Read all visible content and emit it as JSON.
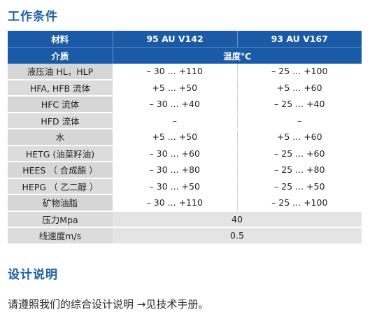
{
  "section1": {
    "title": "工作条件"
  },
  "table": {
    "header": {
      "material_label": "材料",
      "medium_label": "介质",
      "col1": "95 AU V142",
      "col2": "93 AU V167",
      "temperature_label": "温度℃"
    },
    "rows": [
      {
        "label": "液压油 HL，HLP",
        "v1": "– 30 ... +110",
        "v2": "– 25 ... +100"
      },
      {
        "label": "HFA, HFB 流体",
        "v1": "+5 ... +50",
        "v2": "+5 ... +60"
      },
      {
        "label": "HFC 流体",
        "v1": "– 30 ... +40",
        "v2": "– 25 ... +40"
      },
      {
        "label": "HFD 流体",
        "v1": "–",
        "v2": "–"
      },
      {
        "label": "水",
        "v1": "+5 ... +50",
        "v2": "+5 ... +60"
      },
      {
        "label": "HETG (油菜籽油)",
        "v1": "– 30 ... +60",
        "v2": "– 25 ... +60"
      },
      {
        "label": "HEES （ 合成酯 ）",
        "v1": "– 30 ... +80",
        "v2": "– 25 ... +80"
      },
      {
        "label": "HEPG （ 乙二醇 ）",
        "v1": "– 30 ... +50",
        "v2": "– 25 ... +50"
      },
      {
        "label": "矿物油脂",
        "v1": "– 30 ... +110",
        "v2": "– 25 ... +100"
      }
    ],
    "pressure": {
      "label": "压力Mpa",
      "value": "40"
    },
    "speed": {
      "label": "线速度m/s",
      "value": "0.5"
    }
  },
  "section2": {
    "title": "设计说明",
    "text": "请遵照我们的综合设计说明 →见技术手册。"
  }
}
